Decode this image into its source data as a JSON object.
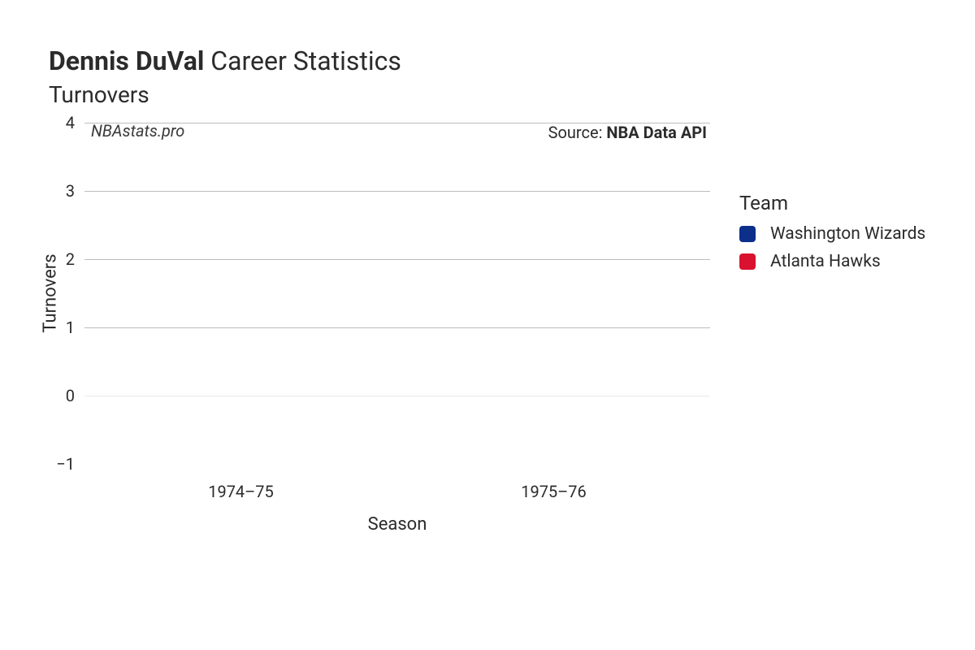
{
  "title": {
    "player_name": "Dennis DuVal",
    "suffix": " Career Statistics",
    "fontsize": 32,
    "color": "#2b2b2b"
  },
  "subtitle": {
    "text": "Turnovers",
    "fontsize": 28,
    "color": "#2b2b2b"
  },
  "chart": {
    "type": "bar",
    "watermark": "NBAstats.pro",
    "source_prefix": "Source: ",
    "source_name": "NBA Data API",
    "background_color": "#ffffff",
    "grid_color": "#bdbdbd",
    "grid_color_light": "#e8e8e8",
    "x_axis": {
      "title": "Season",
      "categories": [
        "1974–75",
        "1975–76"
      ],
      "label_fontsize": 20,
      "title_fontsize": 22
    },
    "y_axis": {
      "title": "Turnovers",
      "ylim": [
        -1,
        4
      ],
      "ticks": [
        -1,
        0,
        1,
        2,
        3,
        4
      ],
      "tick_labels": [
        "−1",
        "0",
        "1",
        "2",
        "3",
        "4"
      ],
      "label_fontsize": 20,
      "title_fontsize": 22
    },
    "series": []
  },
  "legend": {
    "title": "Team",
    "title_fontsize": 24,
    "label_fontsize": 21,
    "items": [
      {
        "label": "Washington Wizards",
        "color": "#0c2f8a"
      },
      {
        "label": "Atlanta Hawks",
        "color": "#d8122f"
      }
    ]
  }
}
